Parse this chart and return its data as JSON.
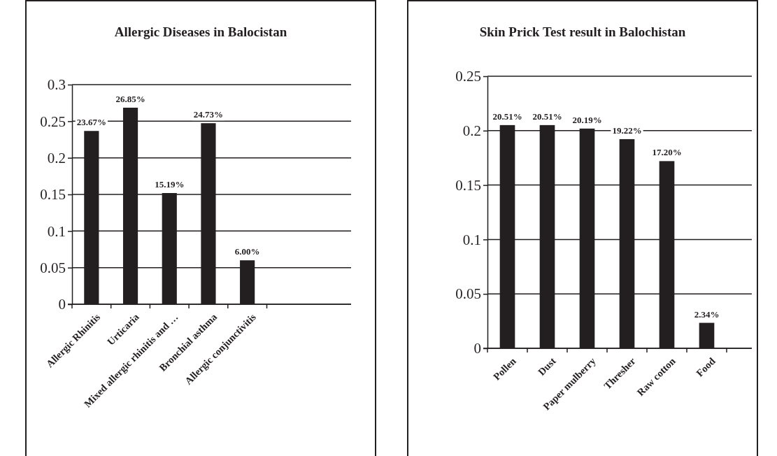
{
  "chart_data": [
    {
      "type": "bar",
      "title": "Allergic Diseases in Balocistan",
      "categories": [
        "Allergic Rhinitis",
        "Urticaria",
        "Mixed allergic rhinitis and …",
        "Bronchial asthma",
        "Allergic conjunctivitis"
      ],
      "values": [
        0.2367,
        0.2685,
        0.1519,
        0.2473,
        0.06
      ],
      "value_labels": [
        "23.67%",
        "26.85%",
        "15.19%",
        "24.73%",
        "6.00%"
      ],
      "color": "#231f20",
      "ylim": [
        0,
        0.3
      ],
      "yticks": [
        0,
        0.05,
        0.1,
        0.15,
        0.2,
        0.25,
        0.3
      ],
      "grid": "y"
    },
    {
      "type": "bar",
      "title": "Skin Prick Test result in Balochistan",
      "categories": [
        "Pollen",
        "Dust",
        "Paper mulberry",
        "Thresher",
        "Raw cotton",
        "Food"
      ],
      "values": [
        0.2051,
        0.2051,
        0.2019,
        0.1922,
        0.172,
        0.0234
      ],
      "value_labels": [
        "20.51%",
        "20.51%",
        "20.19%",
        "19.22%",
        "17.20%",
        "2.34%"
      ],
      "color": "#231f20",
      "ylim": [
        0,
        0.25
      ],
      "yticks": [
        0,
        0.05,
        0.1,
        0.15,
        0.2,
        0.25
      ],
      "grid": "y"
    }
  ]
}
